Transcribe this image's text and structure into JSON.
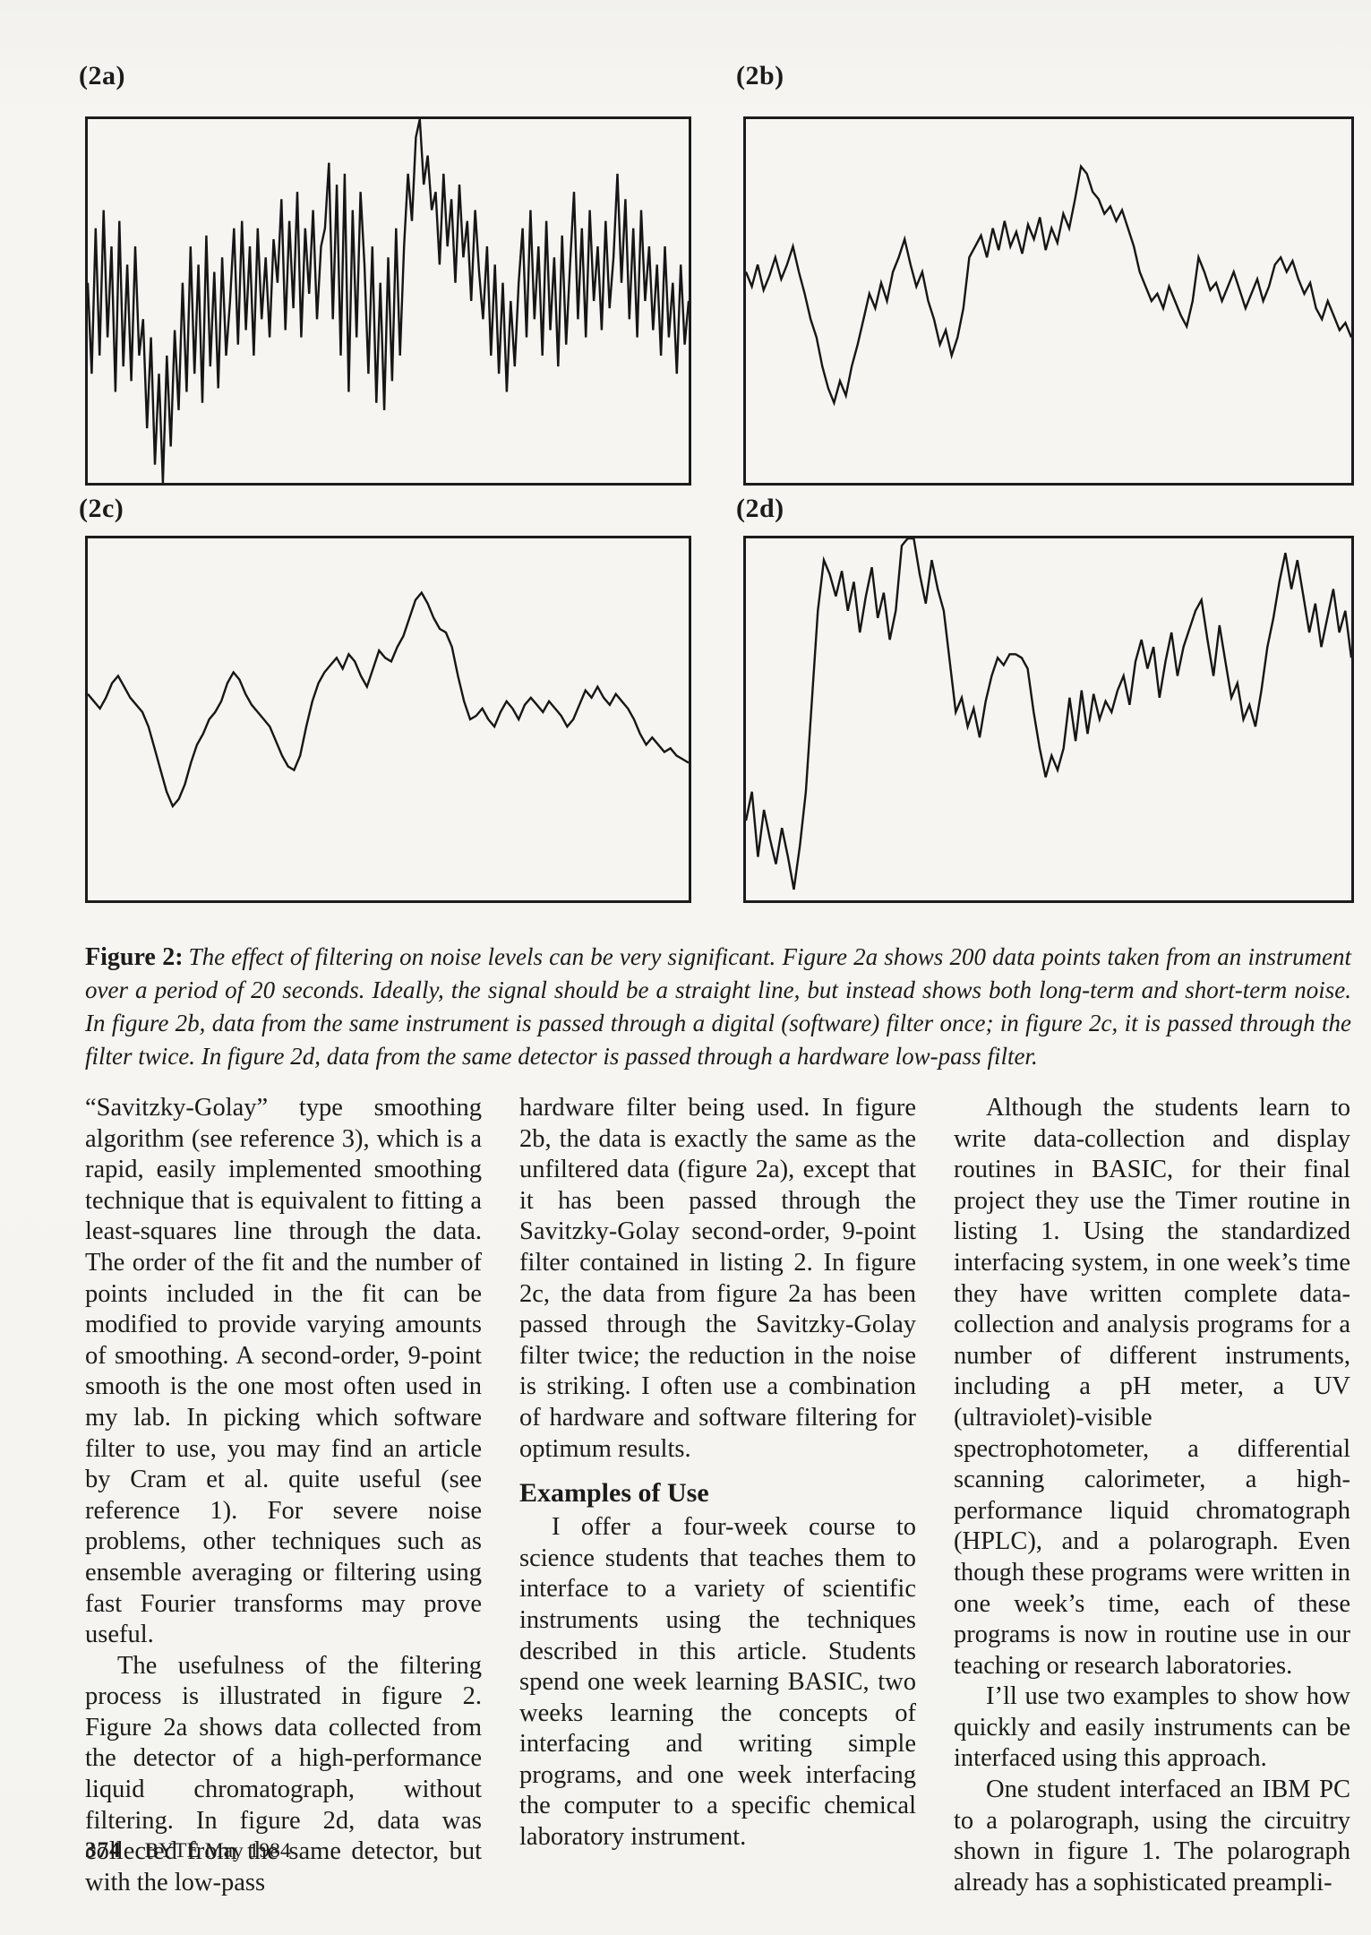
{
  "page": {
    "background": "#f6f5f2",
    "ink": "#1b1b1b",
    "footer": {
      "page_number": "374",
      "magazine": "BYTE May 1984"
    }
  },
  "figure": {
    "caption_lead": "Figure 2:",
    "caption_text": "The effect of filtering on noise levels can be very significant. Figure 2a shows 200 data points taken from an instrument over a period of 20 seconds. Ideally, the signal should be a straight line, but instead shows both long-term and short-term noise. In figure 2b, data from the same instrument is passed through a digital (software) filter once; in figure 2c, it is passed through the filter twice. In figure 2d, data from the same detector is passed through a hardware low-pass filter."
  },
  "chart_data": [
    {
      "id": "2a",
      "label": "(2a)",
      "type": "line",
      "title": "Unfiltered detector signal, 200 data points over 20 seconds",
      "axes_labeled": false,
      "grid": false,
      "x_range_percent": [
        0,
        100
      ],
      "y_unit": "percent of panel height from top (estimated, no axis scale printed)",
      "values": [
        45,
        70,
        30,
        65,
        25,
        60,
        35,
        75,
        28,
        68,
        40,
        72,
        35,
        65,
        55,
        85,
        60,
        95,
        70,
        100,
        65,
        90,
        58,
        80,
        45,
        75,
        35,
        70,
        40,
        78,
        32,
        68,
        42,
        74,
        38,
        65,
        50,
        30,
        62,
        28,
        58,
        35,
        65,
        30,
        55,
        38,
        60,
        33,
        45,
        22,
        58,
        28,
        52,
        20,
        60,
        30,
        48,
        25,
        55,
        35,
        30,
        12,
        55,
        18,
        65,
        15,
        75,
        25,
        60,
        20,
        40,
        70,
        35,
        78,
        45,
        80,
        38,
        72,
        30,
        65,
        35,
        15,
        28,
        5,
        0,
        18,
        10,
        25,
        20,
        40,
        15,
        35,
        22,
        45,
        18,
        38,
        28,
        50,
        25,
        42,
        55,
        35,
        65,
        40,
        70,
        45,
        75,
        50,
        68,
        45,
        30,
        60,
        25,
        55,
        35,
        65,
        28,
        58,
        38,
        68,
        32,
        62,
        40,
        20,
        55,
        30,
        60,
        25,
        50,
        35,
        58,
        28,
        52,
        38,
        15,
        45,
        22,
        55,
        30,
        60,
        25,
        50,
        35,
        58,
        40,
        65,
        35,
        60,
        45,
        70,
        40,
        62,
        50
      ]
    },
    {
      "id": "2b",
      "label": "(2b)",
      "type": "line",
      "title": "Same signal after one pass of digital (software) Savitzky-Golay filter",
      "axes_labeled": false,
      "grid": false,
      "x_range_percent": [
        0,
        100
      ],
      "y_unit": "percent of panel height from top (estimated, no axis scale printed)",
      "values": [
        42,
        46,
        40,
        47,
        43,
        38,
        44,
        40,
        35,
        42,
        48,
        55,
        60,
        68,
        74,
        78,
        72,
        76,
        68,
        62,
        55,
        48,
        52,
        45,
        50,
        42,
        38,
        33,
        40,
        46,
        42,
        50,
        55,
        62,
        58,
        65,
        60,
        52,
        38,
        35,
        32,
        38,
        30,
        36,
        28,
        35,
        31,
        37,
        29,
        33,
        27,
        36,
        30,
        34,
        26,
        30,
        22,
        13,
        15,
        20,
        22,
        26,
        24,
        28,
        25,
        30,
        35,
        42,
        46,
        50,
        48,
        52,
        46,
        50,
        54,
        57,
        50,
        38,
        42,
        47,
        45,
        50,
        46,
        42,
        47,
        52,
        48,
        44,
        50,
        46,
        40,
        38,
        42,
        39,
        44,
        48,
        45,
        52,
        55,
        50,
        54,
        58,
        56,
        60
      ]
    },
    {
      "id": "2c",
      "label": "(2c)",
      "type": "line",
      "title": "Same signal passed through the Savitzky-Golay filter twice",
      "axes_labeled": false,
      "grid": false,
      "x_range_percent": [
        0,
        100
      ],
      "y_unit": "percent of panel height from top (estimated, no axis scale printed)",
      "values": [
        43,
        45,
        47,
        44,
        40,
        38,
        41,
        44,
        46,
        48,
        52,
        58,
        64,
        70,
        74,
        72,
        68,
        62,
        57,
        54,
        50,
        48,
        45,
        40,
        37,
        39,
        43,
        46,
        48,
        50,
        52,
        56,
        60,
        63,
        64,
        60,
        52,
        45,
        40,
        37,
        35,
        33,
        36,
        32,
        34,
        38,
        41,
        36,
        31,
        33,
        34,
        30,
        27,
        22,
        17,
        15,
        18,
        22,
        25,
        26,
        30,
        38,
        45,
        50,
        49,
        47,
        50,
        52,
        48,
        45,
        47,
        50,
        46,
        44,
        46,
        48,
        45,
        47,
        49,
        52,
        50,
        46,
        42,
        44,
        41,
        44,
        46,
        43,
        45,
        47,
        50,
        54,
        57,
        55,
        57,
        59,
        58,
        60,
        61,
        62
      ]
    },
    {
      "id": "2d",
      "label": "(2d)",
      "type": "line",
      "title": "Same detector passed through a hardware low-pass filter",
      "axes_labeled": false,
      "grid": false,
      "x_range_percent": [
        0,
        100
      ],
      "y_unit": "percent of panel height from top (estimated, no axis scale printed)",
      "values": [
        78,
        70,
        88,
        75,
        83,
        90,
        80,
        88,
        97,
        85,
        70,
        45,
        20,
        6,
        10,
        16,
        9,
        20,
        12,
        26,
        16,
        8,
        22,
        15,
        28,
        20,
        2,
        0,
        0,
        10,
        18,
        6,
        14,
        20,
        34,
        48,
        44,
        52,
        47,
        55,
        45,
        38,
        33,
        35,
        32,
        32,
        33,
        36,
        48,
        58,
        66,
        60,
        64,
        58,
        44,
        56,
        42,
        54,
        43,
        50,
        45,
        48,
        42,
        38,
        46,
        34,
        28,
        36,
        30,
        44,
        34,
        26,
        38,
        30,
        25,
        20,
        17,
        28,
        38,
        24,
        34,
        44,
        40,
        50,
        46,
        52,
        42,
        30,
        22,
        12,
        4,
        14,
        6,
        16,
        26,
        18,
        30,
        22,
        14,
        26,
        20,
        33
      ]
    }
  ],
  "columns": [
    {
      "blocks": [
        {
          "type": "p",
          "indent": false,
          "text": "“Savitzky-Golay” type smoothing algorithm (see reference 3), which is a rapid, easily implemented smoothing technique that is equivalent to fitting a least-squares line through the data. The order of the fit and the number of points included in the fit can be modified to provide varying amounts of smoothing. A second-order, 9-point smooth is the one most often used in my lab. In picking which software filter to use, you may find an article by Cram et al. quite useful (see reference 1). For severe noise problems, other techniques such as ensemble averaging or filtering using fast Fourier transforms may prove useful."
        },
        {
          "type": "p",
          "indent": true,
          "text": "The usefulness of the filtering process is illustrated in figure 2. Figure 2a shows data collected from the detector of a high-performance liquid chromatograph, without filtering. In figure 2d, data was collected from the same detector, but with the low-pass"
        }
      ]
    },
    {
      "blocks": [
        {
          "type": "p",
          "indent": false,
          "text": "hardware filter being used. In figure 2b, the data is exactly the same as the unfiltered data (figure 2a), except that it has been passed through the Savitzky-Golay second-order, 9-point filter contained in listing 2. In figure 2c, the data from figure 2a has been passed through the Savitzky-Golay filter twice; the reduction in the noise is striking. I often use a combination of hardware and software filtering for optimum results."
        },
        {
          "type": "h",
          "text": "Examples of Use"
        },
        {
          "type": "p",
          "indent": true,
          "text": "I offer a four-week course to science students that teaches them to interface to a variety of scientific instruments using the techniques described in this article. Students spend one week learning BASIC, two weeks learning the concepts of interfacing and writing simple programs, and one week interfacing the computer to a specific chemical laboratory instrument."
        }
      ]
    },
    {
      "blocks": [
        {
          "type": "p",
          "indent": true,
          "text": "Although the students learn to write data-collection and display routines in BASIC, for their final project they use the Timer routine in listing 1. Using the standardized interfacing system, in one week’s time they have written complete data-collection and analysis programs for a number of different instruments, including a pH meter, a UV (ultraviolet)-visible spectrophotometer, a differential scanning calorimeter, a high-performance liquid chromatograph (HPLC), and a polarograph. Even though these programs were written in one week’s time, each of these programs is now in routine use in our teaching or research laboratories."
        },
        {
          "type": "p",
          "indent": true,
          "text": "I’ll use two examples to show how quickly and easily instruments can be interfaced using this approach."
        },
        {
          "type": "p",
          "indent": true,
          "text": "One student interfaced an IBM PC to a polarograph, using the circuitry shown in figure 1. The polarograph already has a sophisticated preampli-"
        }
      ]
    }
  ]
}
